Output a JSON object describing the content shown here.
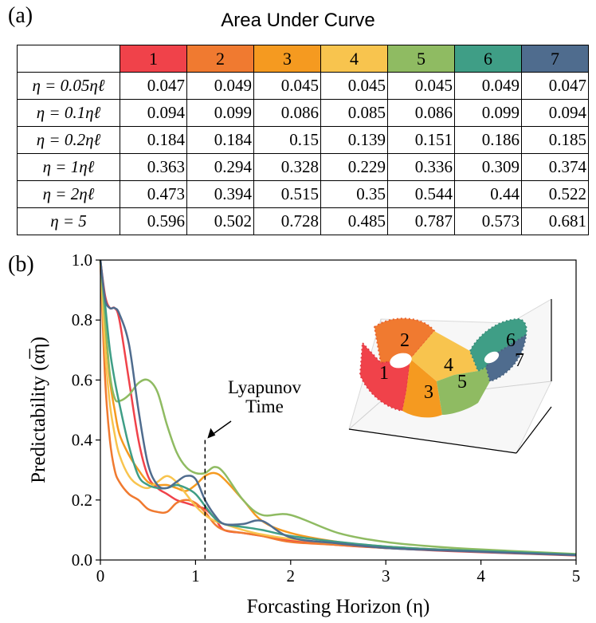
{
  "panel_a_label": "(a)",
  "panel_b_label": "(b)",
  "table": {
    "title": "Area Under Curve",
    "columns": [
      {
        "label": "1",
        "color": "#f0424a"
      },
      {
        "label": "2",
        "color": "#f07a30"
      },
      {
        "label": "3",
        "color": "#f59a20"
      },
      {
        "label": "4",
        "color": "#f8c44e"
      },
      {
        "label": "5",
        "color": "#8fbb62"
      },
      {
        "label": "6",
        "color": "#3f9e86"
      },
      {
        "label": "7",
        "color": "#4f6c8e"
      }
    ],
    "rows": [
      {
        "label": "η = 0.05ηℓ",
        "values": [
          "0.047",
          "0.049",
          "0.045",
          "0.045",
          "0.045",
          "0.049",
          "0.047"
        ]
      },
      {
        "label": "η = 0.1ηℓ",
        "values": [
          "0.094",
          "0.099",
          "0.086",
          "0.085",
          "0.086",
          "0.099",
          "0.094"
        ]
      },
      {
        "label": "η = 0.2ηℓ",
        "values": [
          "0.184",
          "0.184",
          "0.15",
          "0.139",
          "0.151",
          "0.186",
          "0.185"
        ]
      },
      {
        "label": "η = 1ηℓ",
        "values": [
          "0.363",
          "0.294",
          "0.328",
          "0.229",
          "0.336",
          "0.309",
          "0.374"
        ]
      },
      {
        "label": "η = 2ηℓ",
        "values": [
          "0.473",
          "0.394",
          "0.515",
          "0.35",
          "0.544",
          "0.44",
          "0.522"
        ]
      },
      {
        "label": "η = 5",
        "values": [
          "0.596",
          "0.502",
          "0.728",
          "0.485",
          "0.787",
          "0.573",
          "0.681"
        ]
      }
    ]
  },
  "chart_data": {
    "type": "line",
    "xlabel": "Forcasting Horizon (η)",
    "ylabel": "Predictability (α̅η)",
    "xlim": [
      0,
      5
    ],
    "ylim": [
      0,
      1
    ],
    "xticks": [
      "0",
      "1",
      "2",
      "3",
      "4",
      "5"
    ],
    "yticks": [
      "0.0",
      "0.2",
      "0.4",
      "0.6",
      "0.8",
      "1.0"
    ],
    "annotation": {
      "text_line1": "Lyapunov",
      "text_line2": "Time",
      "x": 1.1,
      "y_top": 0.4
    },
    "inset_region_labels": [
      "1",
      "2",
      "3",
      "4",
      "5",
      "6",
      "7"
    ],
    "series": [
      {
        "name": "1",
        "color": "#f0424a",
        "x": [
          0,
          0.05,
          0.1,
          0.15,
          0.2,
          0.3,
          0.4,
          0.5,
          0.6,
          0.7,
          0.8,
          0.9,
          1.0,
          1.1,
          1.2,
          1.3,
          1.5,
          1.7,
          2.0,
          2.5,
          3.0,
          3.5,
          4.0,
          5.0
        ],
        "y": [
          1.0,
          0.88,
          0.84,
          0.84,
          0.8,
          0.6,
          0.4,
          0.28,
          0.24,
          0.22,
          0.2,
          0.19,
          0.18,
          0.17,
          0.14,
          0.1,
          0.09,
          0.08,
          0.065,
          0.05,
          0.04,
          0.032,
          0.026,
          0.015
        ]
      },
      {
        "name": "2",
        "color": "#f07a30",
        "x": [
          0,
          0.05,
          0.1,
          0.15,
          0.2,
          0.3,
          0.4,
          0.5,
          0.6,
          0.7,
          0.8,
          0.9,
          1.0,
          1.1,
          1.2,
          1.3,
          1.5,
          1.7,
          2.0,
          2.5,
          3.0,
          3.5,
          4.0,
          5.0
        ],
        "y": [
          1.0,
          0.6,
          0.4,
          0.3,
          0.26,
          0.22,
          0.2,
          0.17,
          0.16,
          0.16,
          0.19,
          0.2,
          0.19,
          0.16,
          0.12,
          0.1,
          0.09,
          0.08,
          0.06,
          0.05,
          0.04,
          0.033,
          0.027,
          0.016
        ]
      },
      {
        "name": "3",
        "color": "#f59a20",
        "x": [
          0,
          0.05,
          0.1,
          0.15,
          0.2,
          0.3,
          0.4,
          0.5,
          0.6,
          0.7,
          0.8,
          0.9,
          1.0,
          1.1,
          1.2,
          1.3,
          1.5,
          1.7,
          2.0,
          2.5,
          3.0,
          3.5,
          4.0,
          5.0
        ],
        "y": [
          1.0,
          0.78,
          0.6,
          0.5,
          0.42,
          0.35,
          0.3,
          0.26,
          0.25,
          0.25,
          0.24,
          0.23,
          0.25,
          0.28,
          0.29,
          0.27,
          0.2,
          0.13,
          0.09,
          0.06,
          0.045,
          0.036,
          0.03,
          0.018
        ]
      },
      {
        "name": "4",
        "color": "#f8c44e",
        "x": [
          0,
          0.05,
          0.1,
          0.15,
          0.2,
          0.3,
          0.4,
          0.5,
          0.6,
          0.7,
          0.8,
          0.9,
          1.0,
          1.1,
          1.2,
          1.3,
          1.5,
          1.7,
          2.0,
          2.5,
          3.0,
          3.5,
          4.0,
          5.0
        ],
        "y": [
          1.0,
          0.7,
          0.52,
          0.42,
          0.35,
          0.28,
          0.25,
          0.24,
          0.26,
          0.28,
          0.26,
          0.22,
          0.18,
          0.15,
          0.13,
          0.12,
          0.1,
          0.085,
          0.07,
          0.055,
          0.045,
          0.035,
          0.028,
          0.017
        ]
      },
      {
        "name": "5",
        "color": "#8fbb62",
        "x": [
          0,
          0.05,
          0.1,
          0.15,
          0.2,
          0.3,
          0.4,
          0.5,
          0.6,
          0.7,
          0.8,
          0.9,
          1.0,
          1.1,
          1.2,
          1.3,
          1.5,
          1.7,
          2.0,
          2.5,
          3.0,
          3.5,
          4.0,
          5.0
        ],
        "y": [
          1.0,
          0.8,
          0.62,
          0.54,
          0.53,
          0.55,
          0.59,
          0.6,
          0.56,
          0.45,
          0.36,
          0.31,
          0.29,
          0.29,
          0.31,
          0.29,
          0.2,
          0.15,
          0.15,
          0.09,
          0.06,
          0.045,
          0.035,
          0.02
        ]
      },
      {
        "name": "6",
        "color": "#3f9e86",
        "x": [
          0,
          0.05,
          0.1,
          0.15,
          0.2,
          0.3,
          0.4,
          0.5,
          0.6,
          0.7,
          0.8,
          0.9,
          1.0,
          1.1,
          1.2,
          1.3,
          1.5,
          1.7,
          2.0,
          2.5,
          3.0,
          3.5,
          4.0,
          5.0
        ],
        "y": [
          1.0,
          0.85,
          0.7,
          0.6,
          0.52,
          0.38,
          0.28,
          0.25,
          0.24,
          0.24,
          0.25,
          0.24,
          0.22,
          0.18,
          0.14,
          0.12,
          0.11,
          0.1,
          0.08,
          0.06,
          0.045,
          0.036,
          0.03,
          0.018
        ]
      },
      {
        "name": "7",
        "color": "#4f6c8e",
        "x": [
          0,
          0.05,
          0.1,
          0.15,
          0.2,
          0.3,
          0.4,
          0.5,
          0.6,
          0.7,
          0.8,
          0.9,
          1.0,
          1.1,
          1.2,
          1.3,
          1.5,
          1.7,
          2.0,
          2.5,
          3.0,
          3.5,
          4.0,
          5.0
        ],
        "y": [
          1.0,
          0.87,
          0.84,
          0.84,
          0.82,
          0.72,
          0.5,
          0.32,
          0.25,
          0.24,
          0.26,
          0.28,
          0.27,
          0.2,
          0.15,
          0.12,
          0.12,
          0.13,
          0.075,
          0.055,
          0.04,
          0.033,
          0.027,
          0.016
        ]
      }
    ]
  }
}
